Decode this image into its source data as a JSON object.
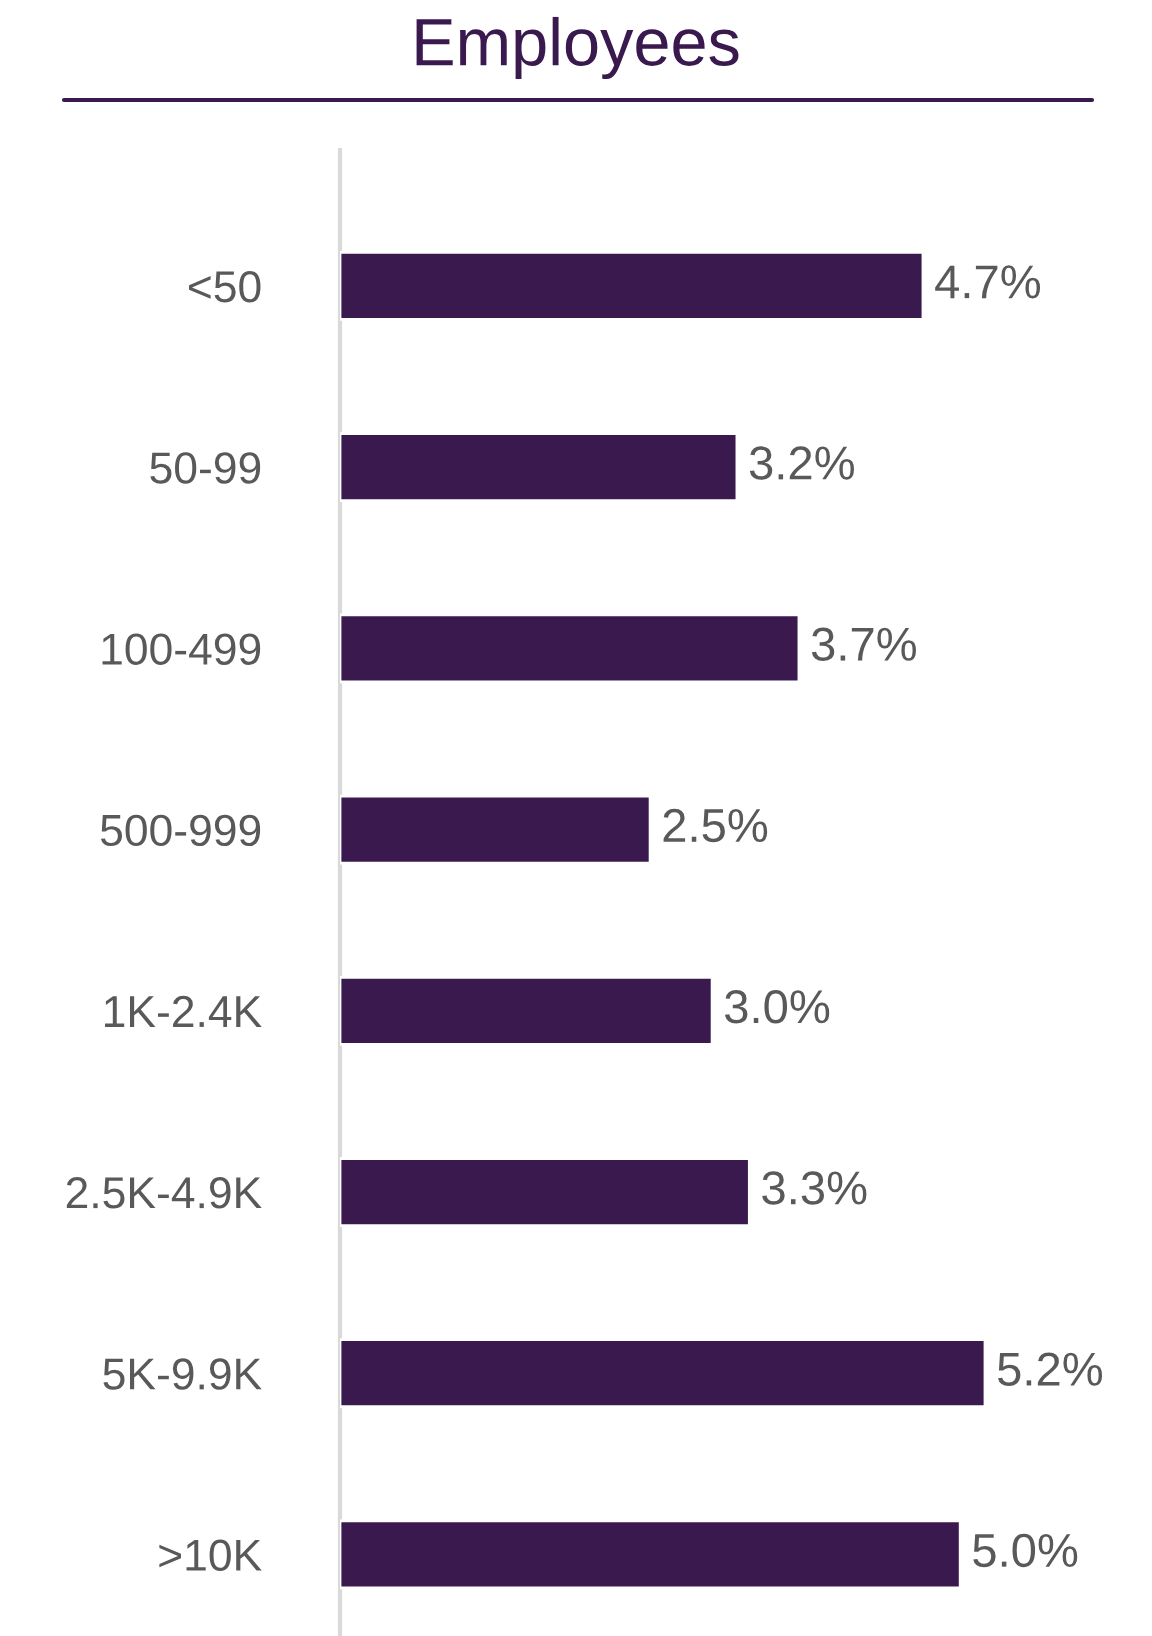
{
  "chart_data": {
    "type": "bar",
    "orientation": "horizontal",
    "title": "Employees",
    "categories": [
      "<50",
      "50-99",
      "100-499",
      "500-999",
      "1K-2.4K",
      "2.5K-4.9K",
      "5K-9.9K",
      ">10K"
    ],
    "values": [
      4.7,
      3.2,
      3.7,
      2.5,
      3.0,
      3.3,
      5.2,
      5.0
    ],
    "value_labels": [
      "4.7%",
      "3.2%",
      "3.7%",
      "2.5%",
      "3.0%",
      "3.3%",
      "5.2%",
      "5.0%"
    ],
    "color": "#3a1a4e",
    "tick_labels": "y",
    "grid": false,
    "legend": false
  }
}
